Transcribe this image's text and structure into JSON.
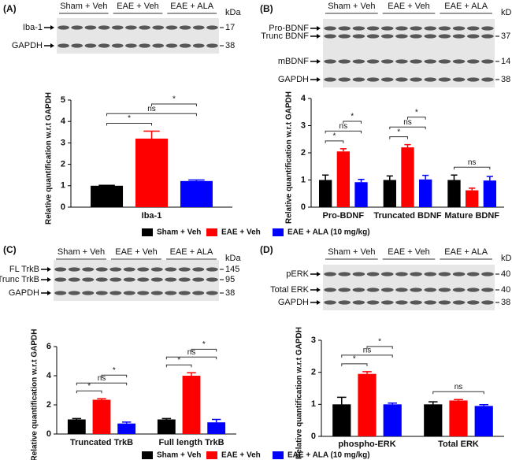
{
  "panels": [
    {
      "label": "(A)",
      "groups": [
        "Sham + Veh",
        "EAE + Veh",
        "EAE + ALA"
      ],
      "unit": "kDa",
      "rows": [
        {
          "label": "Iba-1",
          "kda": 17
        },
        {
          "label": "GAPDH",
          "kda": 38
        }
      ]
    },
    {
      "label": "(B)",
      "groups": [
        "Sham + Veh",
        "EAE + Veh",
        "EAE + ALA"
      ],
      "unit": "kDa",
      "rows": [
        {
          "label": "Pro-BDNF"
        },
        {
          "label": "Trunc BDNF",
          "kda": 37
        },
        {
          "label": "mBDNF",
          "kda": 14
        },
        {
          "label": "GAPDH",
          "kda": 38
        }
      ]
    },
    {
      "label": "(C)",
      "groups": [
        "Sham + Veh",
        "EAE + Veh",
        "EAE + ALA"
      ],
      "unit": "kDa",
      "rows": [
        {
          "label": "FL TrkB",
          "kda": 145
        },
        {
          "label": "Trunc TrkB",
          "kda": 95
        },
        {
          "label": "GAPDH",
          "kda": 38
        }
      ]
    },
    {
      "label": "(D)",
      "groups": [
        "Sham + Veh",
        "EAE + Veh",
        "EAE + ALA"
      ],
      "unit": "kDa",
      "rows": [
        {
          "label": "pERK",
          "kda": 40
        },
        {
          "label": "Total ERK",
          "kda": 40
        },
        {
          "label": "GAPDH",
          "kda": 38
        }
      ]
    }
  ],
  "chart_data": [
    {
      "type": "bar",
      "ylabel": "Relative quantification w.r.t GAPDH",
      "categories": [
        "Iba-1"
      ],
      "ylim": [
        0,
        5
      ],
      "yticks": [
        0,
        1,
        2,
        3,
        4,
        5
      ],
      "series": [
        {
          "name": "Sham + Veh",
          "color": "#000000",
          "values": [
            1.0
          ],
          "errors": [
            0.02
          ]
        },
        {
          "name": "EAE + Veh",
          "color": "#ff0000",
          "values": [
            3.2
          ],
          "errors": [
            0.35
          ]
        },
        {
          "name": "EAE + ALA (10 mg/kg)",
          "color": "#0000ff",
          "values": [
            1.22
          ],
          "errors": [
            0.05
          ]
        }
      ],
      "annotations": [
        {
          "label": "*",
          "category": "Iba-1",
          "between": [
            "Sham + Veh",
            "EAE + Veh"
          ]
        },
        {
          "label": "ns",
          "category": "Iba-1",
          "between": [
            "Sham + Veh",
            "EAE + ALA (10 mg/kg)"
          ]
        },
        {
          "label": "*",
          "category": "Iba-1",
          "between": [
            "EAE + Veh",
            "EAE + ALA (10 mg/kg)"
          ]
        }
      ]
    },
    {
      "type": "bar",
      "ylabel": "Relative quantification w.r.t GAPDH",
      "categories": [
        "Pro-BDNF",
        "Truncated BDNF",
        "Mature BDNF"
      ],
      "ylim": [
        0,
        4
      ],
      "yticks": [
        0,
        1,
        2,
        3,
        4
      ],
      "series": [
        {
          "name": "Sham + Veh",
          "color": "#000000",
          "values": [
            1.0,
            1.0,
            1.0
          ],
          "errors": [
            0.18,
            0.15,
            0.18
          ]
        },
        {
          "name": "EAE + Veh",
          "color": "#ff0000",
          "values": [
            2.05,
            2.2,
            0.62
          ],
          "errors": [
            0.1,
            0.1,
            0.08
          ]
        },
        {
          "name": "EAE + ALA (10 mg/kg)",
          "color": "#0000ff",
          "values": [
            0.92,
            1.02,
            0.98
          ],
          "errors": [
            0.1,
            0.15,
            0.15
          ]
        }
      ],
      "annotations": [
        {
          "label": "*",
          "category": "Pro-BDNF",
          "between": [
            "Sham + Veh",
            "EAE + Veh"
          ]
        },
        {
          "label": "ns",
          "category": "Pro-BDNF",
          "between": [
            "Sham + Veh",
            "EAE + ALA (10 mg/kg)"
          ]
        },
        {
          "label": "*",
          "category": "Pro-BDNF",
          "between": [
            "EAE + Veh",
            "EAE + ALA (10 mg/kg)"
          ]
        },
        {
          "label": "*",
          "category": "Truncated BDNF",
          "between": [
            "Sham + Veh",
            "EAE + Veh"
          ]
        },
        {
          "label": "ns",
          "category": "Truncated BDNF",
          "between": [
            "Sham + Veh",
            "EAE + ALA (10 mg/kg)"
          ]
        },
        {
          "label": "*",
          "category": "Truncated BDNF",
          "between": [
            "EAE + Veh",
            "EAE + ALA (10 mg/kg)"
          ]
        },
        {
          "label": "ns",
          "category": "Mature BDNF",
          "between": [
            "Sham + Veh",
            "EAE + ALA (10 mg/kg)"
          ]
        }
      ]
    },
    {
      "type": "bar",
      "ylabel": "Relative quantification w.r.t GAPDH",
      "categories": [
        "Truncated TrkB",
        "Full length TrkB"
      ],
      "ylim": [
        0,
        6
      ],
      "yticks": [
        0,
        2,
        4,
        6
      ],
      "series": [
        {
          "name": "Sham + Veh",
          "color": "#000000",
          "values": [
            1.0,
            1.0
          ],
          "errors": [
            0.06,
            0.06
          ]
        },
        {
          "name": "EAE + Veh",
          "color": "#ff0000",
          "values": [
            2.35,
            4.0
          ],
          "errors": [
            0.07,
            0.2
          ]
        },
        {
          "name": "EAE + ALA (10 mg/kg)",
          "color": "#0000ff",
          "values": [
            0.72,
            0.8
          ],
          "errors": [
            0.1,
            0.2
          ]
        }
      ],
      "annotations": [
        {
          "label": "*",
          "category": "Truncated TrkB",
          "between": [
            "Sham + Veh",
            "EAE + Veh"
          ]
        },
        {
          "label": "ns",
          "category": "Truncated TrkB",
          "between": [
            "Sham + Veh",
            "EAE + ALA (10 mg/kg)"
          ]
        },
        {
          "label": "*",
          "category": "Truncated TrkB",
          "between": [
            "EAE + Veh",
            "EAE + ALA (10 mg/kg)"
          ]
        },
        {
          "label": "*",
          "category": "Full length TrkB",
          "between": [
            "Sham + Veh",
            "EAE + Veh"
          ]
        },
        {
          "label": "ns",
          "category": "Full length TrkB",
          "between": [
            "Sham + Veh",
            "EAE + ALA (10 mg/kg)"
          ]
        },
        {
          "label": "*",
          "category": "Full length TrkB",
          "between": [
            "EAE + Veh",
            "EAE + ALA (10 mg/kg)"
          ]
        }
      ]
    },
    {
      "type": "bar",
      "ylabel": "Relative quantification w.r.t GAPDH",
      "categories": [
        "phospho-ERK",
        "Total ERK"
      ],
      "ylim": [
        0,
        3
      ],
      "yticks": [
        0,
        1,
        2,
        3
      ],
      "series": [
        {
          "name": "Sham + Veh",
          "color": "#000000",
          "values": [
            1.0,
            1.0
          ],
          "errors": [
            0.22,
            0.08
          ]
        },
        {
          "name": "EAE + Veh",
          "color": "#ff0000",
          "values": [
            1.95,
            1.12
          ],
          "errors": [
            0.07,
            0.03
          ]
        },
        {
          "name": "EAE + ALA (10 mg/kg)",
          "color": "#0000ff",
          "values": [
            1.0,
            0.95
          ],
          "errors": [
            0.04,
            0.04
          ]
        }
      ],
      "annotations": [
        {
          "label": "*",
          "category": "phospho-ERK",
          "between": [
            "Sham + Veh",
            "EAE + Veh"
          ]
        },
        {
          "label": "ns",
          "category": "phospho-ERK",
          "between": [
            "Sham + Veh",
            "EAE + ALA (10 mg/kg)"
          ]
        },
        {
          "label": "*",
          "category": "phospho-ERK",
          "between": [
            "EAE + Veh",
            "EAE + ALA (10 mg/kg)"
          ]
        },
        {
          "label": "ns",
          "category": "Total ERK",
          "between": [
            "Sham + Veh",
            "EAE + ALA (10 mg/kg)"
          ]
        }
      ]
    }
  ]
}
